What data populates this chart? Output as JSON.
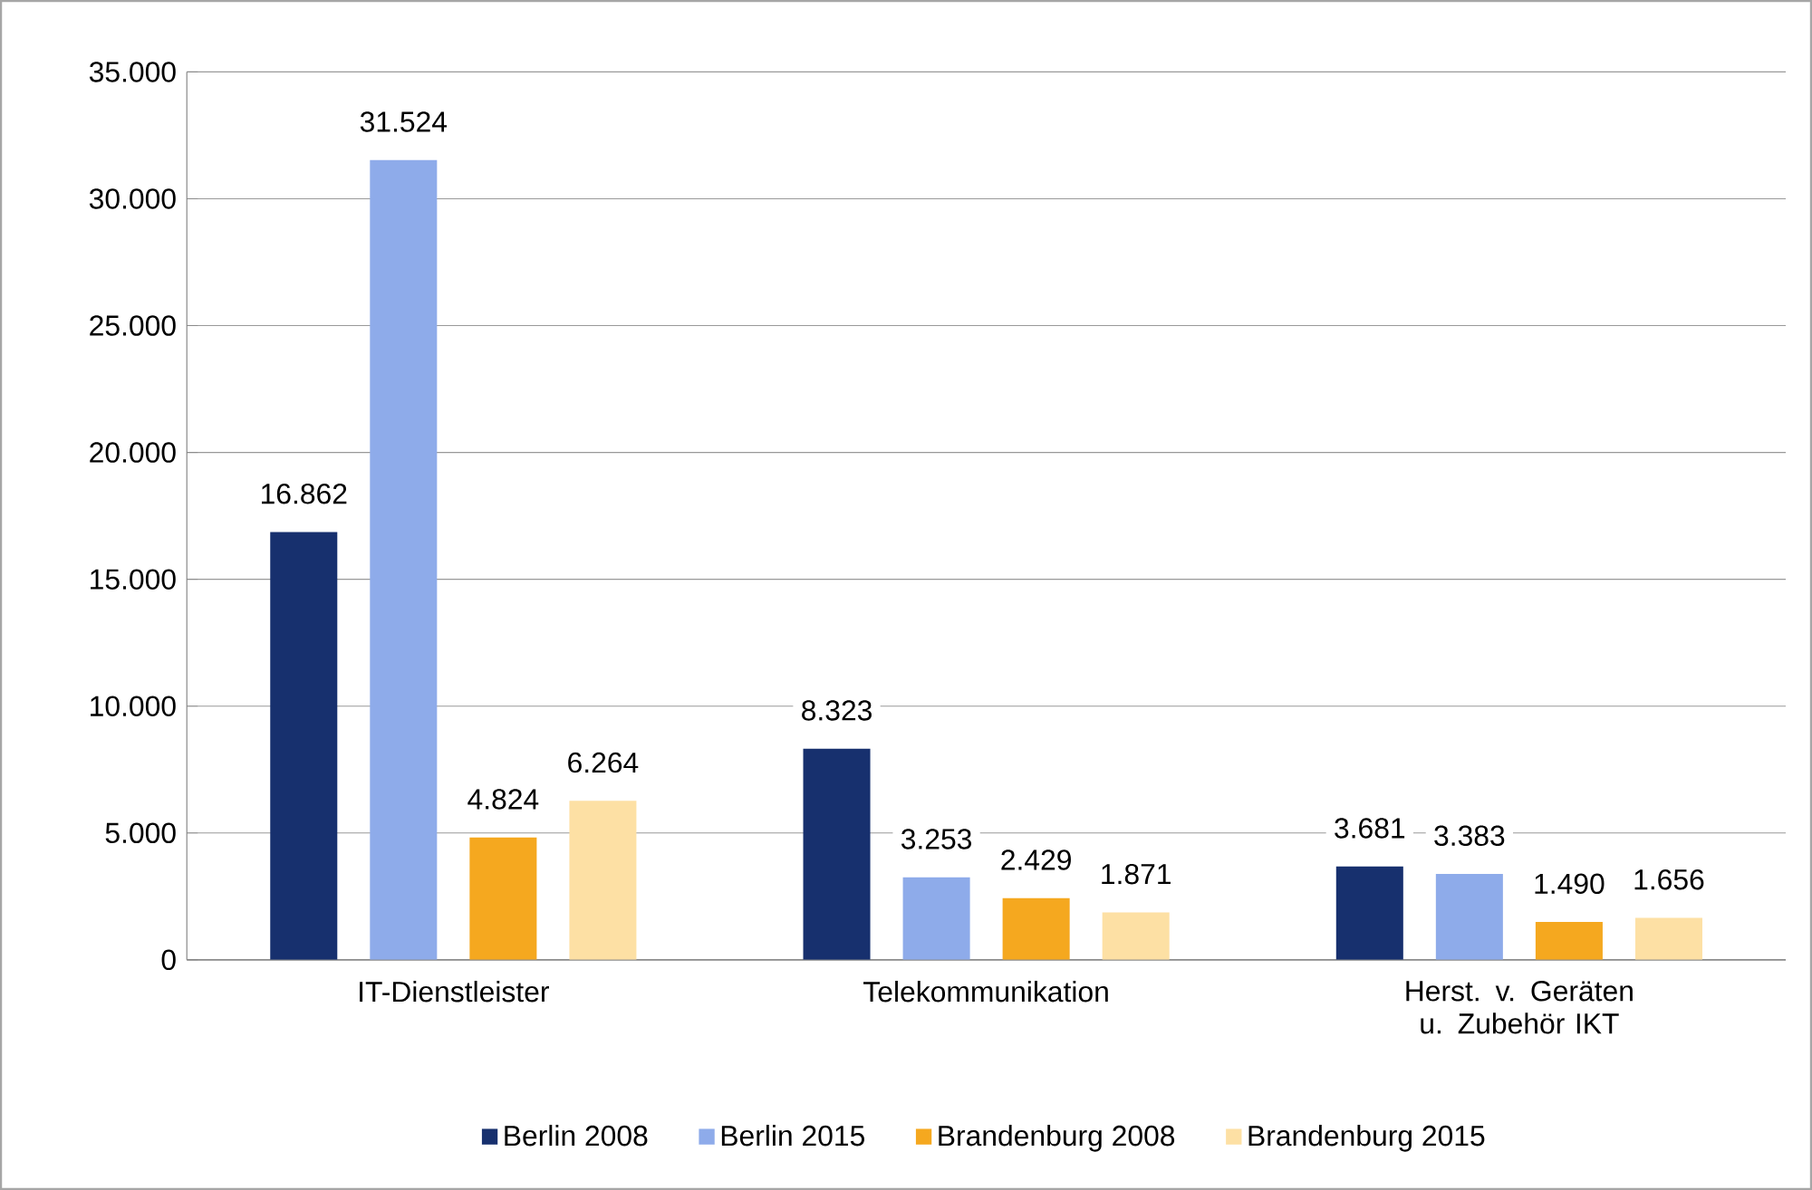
{
  "chart_data": {
    "type": "bar",
    "categories": [
      "IT-Dienstleister",
      "Telekommunikation",
      "Herst. v. Geräten u. Zubehör IKT"
    ],
    "series": [
      {
        "name": "Berlin 2008",
        "color": "#17306e",
        "values": [
          16862,
          8323,
          3681
        ],
        "value_labels": [
          "16.862",
          "8.323",
          "3.681"
        ]
      },
      {
        "name": "Berlin 2015",
        "color": "#8eabea",
        "values": [
          31524,
          3253,
          3383
        ],
        "value_labels": [
          "31.524",
          "3.253",
          "3.383"
        ]
      },
      {
        "name": "Brandenburg 2008",
        "color": "#f5a81f",
        "values": [
          4824,
          2429,
          1490
        ],
        "value_labels": [
          "4.824",
          "2.429",
          "1.490"
        ]
      },
      {
        "name": "Brandenburg 2015",
        "color": "#fde0a4",
        "values": [
          6264,
          1871,
          1656
        ],
        "value_labels": [
          "6.264",
          "1.871",
          "1.656"
        ]
      }
    ],
    "ylim": [
      0,
      35000
    ],
    "yticks": [
      0,
      {
        "value": 5000,
        "label": "5.000"
      },
      {
        "value": 10000,
        "label": "10.000"
      },
      {
        "value": 15000,
        "label": "15.000"
      },
      {
        "value": 20000,
        "label": "20.000"
      },
      {
        "value": 25000,
        "label": "25.000"
      },
      {
        "value": 30000,
        "label": "30.000"
      },
      {
        "value": 35000,
        "label": "35.000"
      }
    ],
    "grid": "y",
    "legend": "bottom"
  }
}
